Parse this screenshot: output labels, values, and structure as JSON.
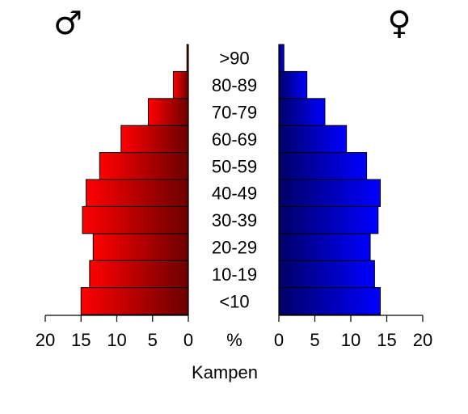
{
  "chart_data": {
    "type": "bar",
    "subtype": "population-pyramid",
    "title": "",
    "xlabel": "Kampen",
    "unit_label": "%",
    "categories": [
      "<10",
      "10-19",
      "20-29",
      "30-39",
      "40-49",
      "50-59",
      "60-69",
      "70-79",
      "80-89",
      ">90"
    ],
    "series": [
      {
        "symbol": "♂",
        "values": [
          15.0,
          13.8,
          13.3,
          14.8,
          14.3,
          12.4,
          9.4,
          5.6,
          2.1,
          0.2
        ],
        "color_light": "#ff0000",
        "color_dark": "#6b0000"
      },
      {
        "symbol": "♀",
        "values": [
          14.1,
          13.3,
          12.7,
          13.8,
          14.1,
          12.2,
          9.4,
          6.4,
          3.9,
          0.7
        ],
        "color_light": "#0000ff",
        "color_dark": "#000066"
      }
    ],
    "xlim": [
      0,
      20
    ],
    "ticks": [
      0,
      5,
      10,
      15,
      20
    ],
    "tick_labels_left": [
      "20",
      "15",
      "10",
      "5",
      "0"
    ],
    "tick_labels_right": [
      "0",
      "5",
      "10",
      "15",
      "20"
    ],
    "grid": false,
    "legend": "none"
  }
}
